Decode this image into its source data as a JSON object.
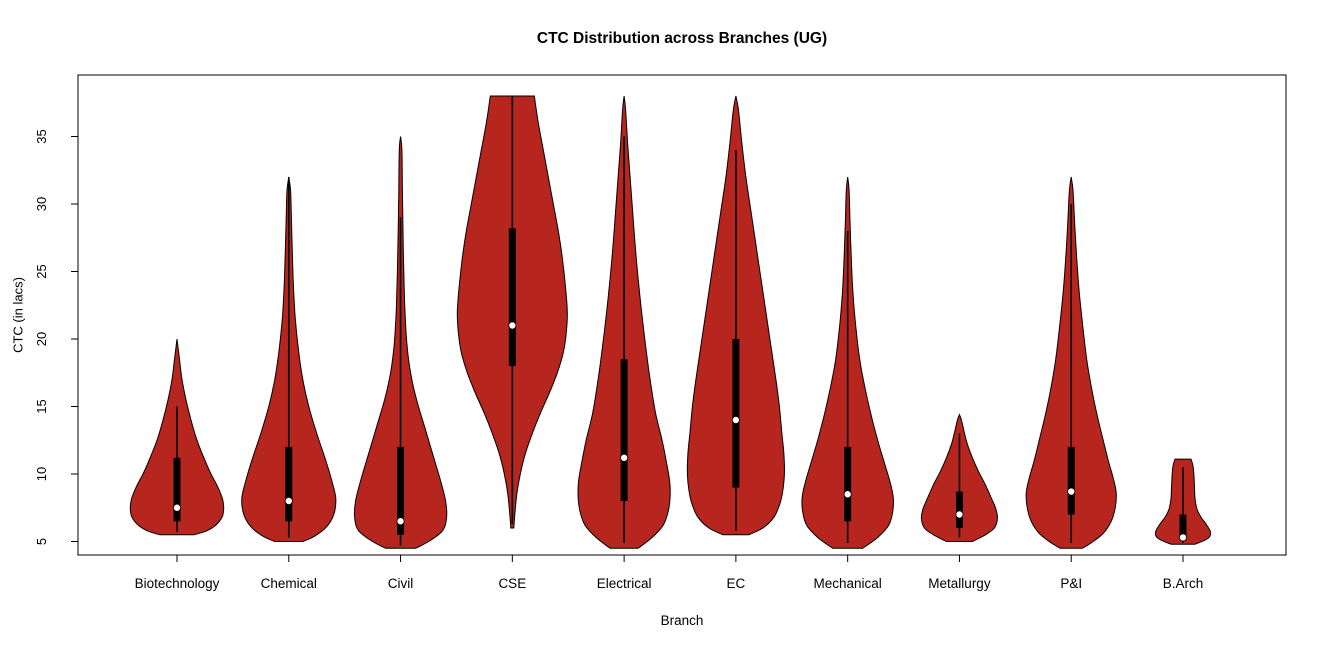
{
  "page": {
    "background": "#ffffff"
  },
  "chart_data": {
    "type": "violin",
    "title": "CTC Distribution across Branches (UG)",
    "xlabel": "Branch",
    "ylabel": "CTC (in lacs)",
    "categories": [
      "Biotechnology",
      "Chemical",
      "Civil",
      "CSE",
      "Electrical",
      "EC",
      "Mechanical",
      "Metallurgy",
      "P&I",
      "B.Arch"
    ],
    "y_ticks": [
      5,
      10,
      15,
      20,
      25,
      30,
      35
    ],
    "ylim": [
      4,
      39.5
    ],
    "grid": false,
    "legend": "none",
    "colors": {
      "violin_fill": "#b6261f",
      "violin_stroke": "#000000",
      "box": "#000000",
      "median_dot": "#ffffff",
      "axis": "#000000"
    },
    "violins": [
      {
        "name": "Biotechnology",
        "min": 5.5,
        "max": 20,
        "q1": 6.5,
        "median": 7.5,
        "q3": 11.2,
        "whisker_low": 5.7,
        "whisker_high": 15,
        "profile": [
          [
            20,
            0
          ],
          [
            18.5,
            2.5
          ],
          [
            17,
            5
          ],
          [
            15.5,
            9
          ],
          [
            14,
            14
          ],
          [
            12.5,
            20
          ],
          [
            11,
            28
          ],
          [
            10,
            34
          ],
          [
            9,
            41
          ],
          [
            8,
            46
          ],
          [
            7,
            46
          ],
          [
            6.3,
            40
          ],
          [
            5.8,
            30
          ],
          [
            5.5,
            17
          ]
        ]
      },
      {
        "name": "Chemical",
        "min": 5,
        "max": 32,
        "q1": 6.5,
        "median": 8,
        "q3": 12,
        "whisker_low": 5.3,
        "whisker_high": 32,
        "profile": [
          [
            32,
            0
          ],
          [
            31,
            1.8
          ],
          [
            29,
            2.6
          ],
          [
            26.5,
            3.5
          ],
          [
            24,
            4.6
          ],
          [
            21.5,
            6.5
          ],
          [
            19,
            10
          ],
          [
            17,
            14
          ],
          [
            15,
            20
          ],
          [
            13,
            28
          ],
          [
            11,
            37
          ],
          [
            9.5,
            43
          ],
          [
            8.2,
            47
          ],
          [
            7,
            45
          ],
          [
            6.1,
            38
          ],
          [
            5.4,
            26
          ],
          [
            5,
            14
          ]
        ]
      },
      {
        "name": "Civil",
        "min": 4.5,
        "max": 35,
        "q1": 5.5,
        "median": 6.5,
        "q3": 12,
        "whisker_low": 4.7,
        "whisker_high": 29,
        "profile": [
          [
            35,
            0
          ],
          [
            34,
            1.3
          ],
          [
            31,
            1.8
          ],
          [
            28,
            2.4
          ],
          [
            25,
            3.2
          ],
          [
            22,
            4.4
          ],
          [
            19.5,
            6.5
          ],
          [
            17.5,
            10
          ],
          [
            15.5,
            16
          ],
          [
            13.5,
            24
          ],
          [
            11.5,
            32
          ],
          [
            9.5,
            40
          ],
          [
            8,
            45
          ],
          [
            6.8,
            46
          ],
          [
            5.8,
            42
          ],
          [
            5,
            28
          ],
          [
            4.5,
            15
          ]
        ]
      },
      {
        "name": "CSE",
        "min": 6,
        "max": 38,
        "q1": 18,
        "median": 21,
        "q3": 28.2,
        "whisker_low": 6.3,
        "whisker_high": 38,
        "profile": [
          [
            38,
            22
          ],
          [
            36,
            26
          ],
          [
            34,
            31
          ],
          [
            32,
            36
          ],
          [
            30,
            41
          ],
          [
            28,
            46
          ],
          [
            26,
            50
          ],
          [
            24,
            53
          ],
          [
            22,
            55
          ],
          [
            20.5,
            54
          ],
          [
            19,
            51
          ],
          [
            17.5,
            45
          ],
          [
            16,
            37
          ],
          [
            14.5,
            28
          ],
          [
            13,
            20
          ],
          [
            11.5,
            13
          ],
          [
            10,
            8
          ],
          [
            8.5,
            4.5
          ],
          [
            7,
            2.5
          ],
          [
            6,
            1.5
          ]
        ]
      },
      {
        "name": "Electrical",
        "min": 4.5,
        "max": 38,
        "q1": 8,
        "median": 11.2,
        "q3": 18.5,
        "whisker_low": 4.9,
        "whisker_high": 35,
        "profile": [
          [
            38,
            0
          ],
          [
            37,
            1.5
          ],
          [
            34.5,
            3.5
          ],
          [
            32,
            6
          ],
          [
            29.5,
            8.5
          ],
          [
            27,
            11
          ],
          [
            24.5,
            14
          ],
          [
            22,
            17.5
          ],
          [
            19.5,
            21.5
          ],
          [
            17,
            26
          ],
          [
            14.5,
            31.5
          ],
          [
            12.5,
            38
          ],
          [
            11,
            42
          ],
          [
            9.5,
            45.5
          ],
          [
            8.3,
            46
          ],
          [
            7.2,
            44
          ],
          [
            6.2,
            39
          ],
          [
            5.3,
            28
          ],
          [
            4.5,
            14
          ]
        ]
      },
      {
        "name": "EC",
        "min": 5.5,
        "max": 38,
        "q1": 9,
        "median": 14,
        "q3": 20,
        "whisker_low": 5.8,
        "whisker_high": 34,
        "profile": [
          [
            38,
            0
          ],
          [
            37,
            2.5
          ],
          [
            34.5,
            6
          ],
          [
            32,
            10
          ],
          [
            29.5,
            15
          ],
          [
            27,
            20
          ],
          [
            24.5,
            25
          ],
          [
            22,
            30
          ],
          [
            19.5,
            35
          ],
          [
            17,
            40
          ],
          [
            15,
            43.5
          ],
          [
            13,
            46
          ],
          [
            11.5,
            48
          ],
          [
            10,
            48.5
          ],
          [
            8.8,
            47
          ],
          [
            7.8,
            44
          ],
          [
            6.8,
            38
          ],
          [
            6,
            27
          ],
          [
            5.5,
            13
          ]
        ]
      },
      {
        "name": "Mechanical",
        "min": 4.5,
        "max": 32,
        "q1": 6.5,
        "median": 8.5,
        "q3": 12,
        "whisker_low": 4.9,
        "whisker_high": 28,
        "profile": [
          [
            32,
            0
          ],
          [
            31,
            1.4
          ],
          [
            28.5,
            2.4
          ],
          [
            26,
            3.6
          ],
          [
            23.5,
            5.2
          ],
          [
            21,
            8
          ],
          [
            18.5,
            12
          ],
          [
            16.5,
            17
          ],
          [
            14.5,
            23
          ],
          [
            12.5,
            30
          ],
          [
            11,
            36
          ],
          [
            9.5,
            42
          ],
          [
            8.3,
            45.5
          ],
          [
            7.2,
            45
          ],
          [
            6.2,
            41
          ],
          [
            5.3,
            30
          ],
          [
            4.5,
            15
          ]
        ]
      },
      {
        "name": "Metallurgy",
        "min": 5,
        "max": 14.4,
        "q1": 6,
        "median": 7,
        "q3": 8.7,
        "whisker_low": 5.3,
        "whisker_high": 13,
        "profile": [
          [
            14.4,
            0
          ],
          [
            14,
            2
          ],
          [
            13.2,
            4.5
          ],
          [
            12.2,
            8
          ],
          [
            11.2,
            13
          ],
          [
            10.2,
            19
          ],
          [
            9.2,
            26
          ],
          [
            8.2,
            32
          ],
          [
            7.4,
            36.5
          ],
          [
            6.7,
            38
          ],
          [
            6,
            35
          ],
          [
            5.5,
            26
          ],
          [
            5,
            13
          ]
        ]
      },
      {
        "name": "P&I",
        "min": 4.5,
        "max": 32,
        "q1": 7,
        "median": 8.7,
        "q3": 12,
        "whisker_low": 4.9,
        "whisker_high": 30,
        "profile": [
          [
            32,
            0
          ],
          [
            31,
            1.8
          ],
          [
            28.5,
            3.5
          ],
          [
            26,
            5.5
          ],
          [
            23.5,
            8
          ],
          [
            21,
            11.5
          ],
          [
            18.5,
            15.5
          ],
          [
            16.5,
            20
          ],
          [
            14.5,
            25.5
          ],
          [
            12.5,
            32
          ],
          [
            11,
            37
          ],
          [
            9.7,
            42
          ],
          [
            8.6,
            45
          ],
          [
            7.5,
            44
          ],
          [
            6.5,
            40
          ],
          [
            5.6,
            32
          ],
          [
            4.9,
            20
          ],
          [
            4.5,
            11
          ]
        ]
      },
      {
        "name": "B.Arch",
        "min": 4.8,
        "max": 11.1,
        "q1": 5.1,
        "median": 5.3,
        "q3": 7,
        "whisker_low": 4.9,
        "whisker_high": 10.5,
        "profile": [
          [
            11.1,
            8
          ],
          [
            10.6,
            10
          ],
          [
            9.8,
            11
          ],
          [
            9,
            11.5
          ],
          [
            8.2,
            12
          ],
          [
            7.4,
            14
          ],
          [
            6.8,
            18
          ],
          [
            6.3,
            23
          ],
          [
            5.8,
            27
          ],
          [
            5.4,
            27
          ],
          [
            5.1,
            22
          ],
          [
            4.8,
            12
          ]
        ]
      }
    ]
  }
}
